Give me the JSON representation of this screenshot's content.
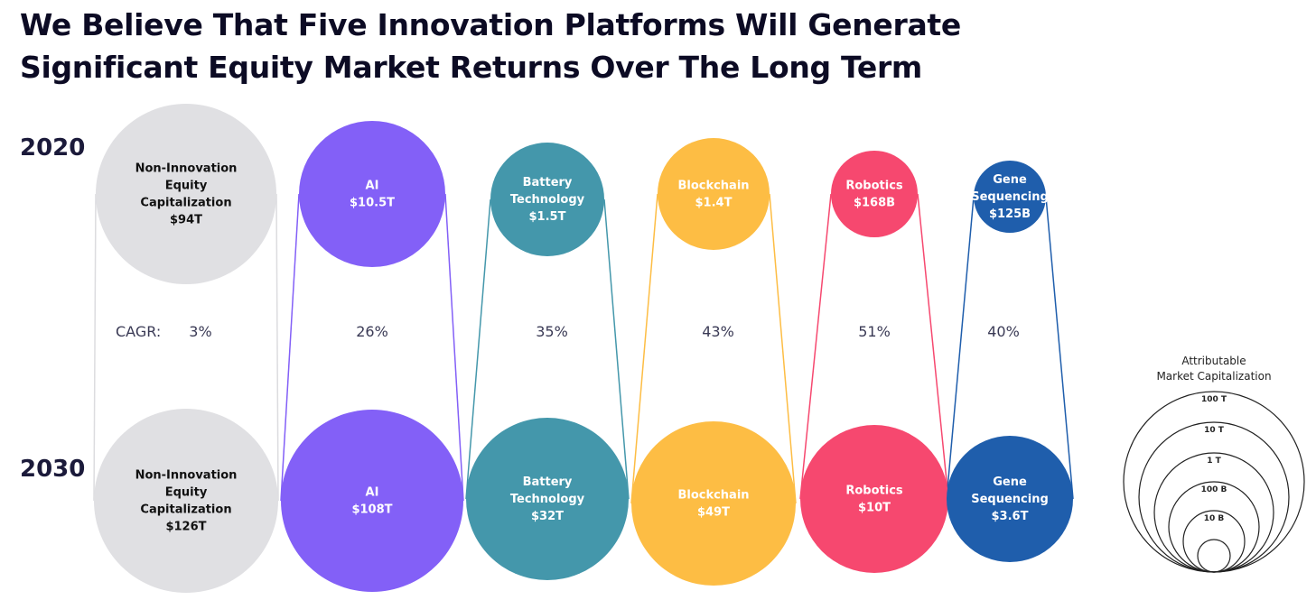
{
  "title_lines": [
    "We Believe That Five Innovation Platforms Will Generate",
    "Significant Equity Market Returns Over The Long Term"
  ],
  "years": {
    "start": "2020",
    "end": "2030"
  },
  "cagr_label": "CAGR:",
  "chart_data": {
    "type": "bubble",
    "title": "We Believe That Five Innovation Platforms Will Generate Significant Equity Market Returns Over The Long Term",
    "categories": [
      {
        "name_lines": [
          "Non-Innovation",
          "Equity",
          "Capitalization"
        ],
        "value_2020": 94,
        "value_2030": 126,
        "label_2020": "$94T",
        "label_2030": "$126T",
        "cagr": "3%",
        "color": "#e0e0e3",
        "text_color": "#111111",
        "line_color": "#dcdcdf"
      },
      {
        "name_lines": [
          "AI"
        ],
        "value_2020": 10.5,
        "value_2030": 108,
        "label_2020": "$10.5T",
        "label_2030": "$108T",
        "cagr": "26%",
        "color": "#8360f7",
        "text_color": "#ffffff",
        "line_color": "#8360f7"
      },
      {
        "name_lines": [
          "Battery",
          "Technology"
        ],
        "value_2020": 1.5,
        "value_2030": 32,
        "label_2020": "$1.5T",
        "label_2030": "$32T",
        "cagr": "35%",
        "color": "#4497ab",
        "text_color": "#ffffff",
        "line_color": "#4497ab"
      },
      {
        "name_lines": [
          "Blockchain"
        ],
        "value_2020": 1.4,
        "value_2030": 49,
        "label_2020": "$1.4T",
        "label_2030": "$49T",
        "cagr": "43%",
        "color": "#fdbd44",
        "text_color": "#ffffff",
        "line_color": "#fdbd44"
      },
      {
        "name_lines": [
          "Robotics"
        ],
        "value_2020": 0.168,
        "value_2030": 10,
        "label_2020": "$168B",
        "label_2030": "$10T",
        "cagr": "51%",
        "color": "#f6486f",
        "text_color": "#ffffff",
        "line_color": "#f6486f"
      },
      {
        "name_lines": [
          "Gene",
          "Sequencing"
        ],
        "value_2020": 0.125,
        "value_2030": 3.6,
        "label_2020": "$125B",
        "label_2030": "$3.6T",
        "cagr": "40%",
        "color": "#1f5eac",
        "text_color": "#ffffff",
        "line_color": "#1f5eac"
      }
    ],
    "units": "trillions USD",
    "legend": {
      "title_lines": [
        "Attributable",
        "Market Capitalization"
      ],
      "rings": [
        {
          "label": "100 T"
        },
        {
          "label": "10 T"
        },
        {
          "label": "1 T"
        },
        {
          "label": "100 B"
        },
        {
          "label": "10 B"
        }
      ]
    }
  }
}
